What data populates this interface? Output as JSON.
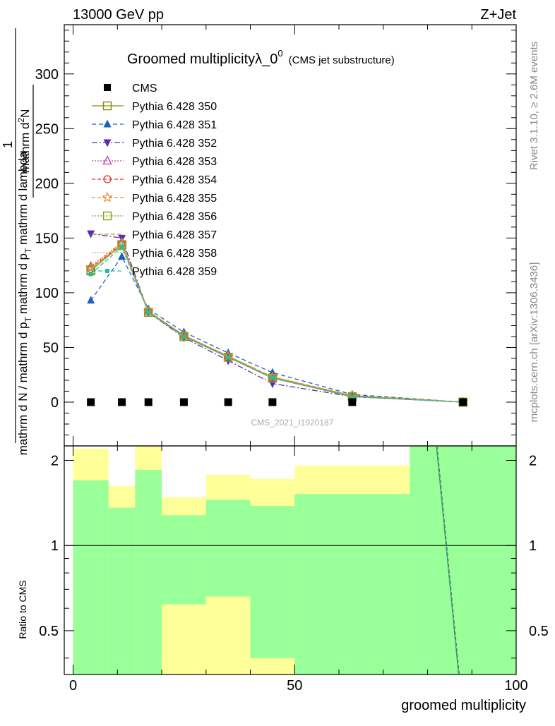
{
  "header": {
    "energy_label": "13000 GeV pp",
    "process_label": "Z+Jet"
  },
  "side_labels": {
    "rivet": "Rivet 3.1.10, ≥ 2.6M events",
    "mcplots": "mcplots.cern.ch [arXiv:1306.3436]"
  },
  "chart_data": {
    "type": "line",
    "title_main": "Groomed multiplicityλ_0",
    "title_sup": "0",
    "title_note": "(CMS jet substructure)",
    "watermark": "CMS_2021_I1920187",
    "xlabel": "groomed multiplicity",
    "ylabel_upper": "1 / mathrm d N / mathrm d p_T mathrm d p_T mathrm d lambda · mathrm d²N",
    "ylabel_upper_parts": {
      "numerator": "mathrm d",
      "numerator_sup": "2",
      "numerator_tail": "N",
      "frac1": "1",
      "denominator": "mathrm d N / mathrm d p",
      "denominator_sub": "T",
      "right_num": "mathrm d p",
      "right_num_sub": "T",
      "right_tail": " mathrm d lambda"
    },
    "ylabel_lower": "Ratio to CMS",
    "xlim": [
      -2,
      100
    ],
    "ylim_upper": [
      -40,
      345
    ],
    "ylim_lower": [
      0.35,
      2.25
    ],
    "x_ticks": [
      0,
      50,
      100
    ],
    "y_ticks_upper": [
      0,
      50,
      100,
      150,
      200,
      250,
      300
    ],
    "y_ticks_lower": [
      0.5,
      1,
      2
    ],
    "log_ratio": true,
    "bin_edges": [
      0,
      8,
      14,
      20,
      30,
      40,
      50,
      76,
      100
    ],
    "cms": {
      "name": "CMS",
      "x": [
        4,
        11,
        17,
        25,
        35,
        45,
        63,
        88
      ],
      "y": [
        0,
        0,
        0,
        0,
        0,
        0,
        0,
        0
      ]
    },
    "series": [
      {
        "name": "Pythia 6.428 350",
        "color": "#8b8b1e",
        "dash": "",
        "marker": "square-open",
        "x": [
          4,
          11,
          17,
          25,
          35,
          45,
          63,
          88
        ],
        "y": [
          120,
          144,
          82,
          60,
          41,
          22,
          5,
          0
        ]
      },
      {
        "name": "Pythia 6.428 351",
        "color": "#1f5fbf",
        "dash": "6,4",
        "marker": "triangle-up",
        "x": [
          4,
          11,
          17,
          25,
          35,
          45,
          63,
          88
        ],
        "y": [
          93,
          133,
          85,
          64,
          45,
          27,
          7,
          0
        ]
      },
      {
        "name": "Pythia 6.428 352",
        "color": "#5a2db0",
        "dash": "8,3,2,3",
        "marker": "triangle-down",
        "x": [
          4,
          11,
          17,
          25,
          35,
          45,
          63,
          88
        ],
        "y": [
          154,
          150,
          82,
          59,
          38,
          17,
          5,
          0
        ]
      },
      {
        "name": "Pythia 6.428 353",
        "color": "#c040a0",
        "dash": "2,2",
        "marker": "triangle-up-open",
        "x": [
          4,
          11,
          17,
          25,
          35,
          45,
          63,
          88
        ],
        "y": [
          124,
          146,
          83,
          61,
          42,
          23,
          6,
          0
        ]
      },
      {
        "name": "Pythia 6.428 354",
        "color": "#e03030",
        "dash": "5,3",
        "marker": "circle-open",
        "x": [
          4,
          11,
          17,
          25,
          35,
          45,
          63,
          88
        ],
        "y": [
          122,
          144,
          83,
          61,
          42,
          22,
          6,
          0
        ]
      },
      {
        "name": "Pythia 6.428 355",
        "color": "#f08030",
        "dash": "5,3",
        "marker": "star-open",
        "x": [
          4,
          11,
          17,
          25,
          35,
          45,
          63,
          88
        ],
        "y": [
          123,
          145,
          83,
          61,
          42,
          23,
          6,
          0
        ]
      },
      {
        "name": "Pythia 6.428 356",
        "color": "#8ca020",
        "dash": "2,2",
        "marker": "square-open",
        "x": [
          4,
          11,
          17,
          25,
          35,
          45,
          63,
          88
        ],
        "y": [
          121,
          143,
          82,
          60,
          41,
          22,
          5,
          0
        ]
      },
      {
        "name": "Pythia 6.428 357",
        "color": "#c0a020",
        "dash": "6,3",
        "marker": "none",
        "x": [
          4,
          11,
          17,
          25,
          35,
          45,
          63,
          88
        ],
        "y": [
          122,
          144,
          83,
          61,
          42,
          23,
          6,
          0
        ]
      },
      {
        "name": "Pythia 6.428 358",
        "color": "#a0d050",
        "dash": "2,2",
        "marker": "none",
        "x": [
          4,
          11,
          17,
          25,
          35,
          45,
          63,
          88
        ],
        "y": [
          121,
          143,
          82,
          60,
          41,
          22,
          5,
          0
        ]
      },
      {
        "name": "Pythia 6.428 359",
        "color": "#20c0a0",
        "dash": "6,3",
        "marker": "square-small",
        "x": [
          4,
          11,
          17,
          25,
          35,
          45,
          63,
          88
        ],
        "y": [
          117,
          142,
          82,
          60,
          41,
          22,
          5,
          0
        ]
      }
    ],
    "ratio_band_yellow": [
      [
        0.28,
        2.2
      ],
      [
        0.43,
        1.62
      ],
      [
        0.32,
        2.3
      ],
      [
        0.23,
        1.48
      ],
      [
        0.28,
        1.78
      ],
      [
        0.27,
        1.72
      ],
      [
        0.28,
        1.92
      ],
      [
        0.2,
        3.0
      ]
    ],
    "ratio_band_green": [
      [
        0.3,
        1.7
      ],
      [
        0.28,
        1.36
      ],
      [
        0.2,
        1.85
      ],
      [
        0.62,
        1.28
      ],
      [
        0.66,
        1.45
      ],
      [
        0.4,
        1.38
      ],
      [
        0.33,
        1.52
      ],
      [
        0.2,
        3.0
      ]
    ],
    "ratio_line": {
      "x": [
        82,
        87
      ],
      "y": [
        3.0,
        0.3
      ]
    }
  }
}
